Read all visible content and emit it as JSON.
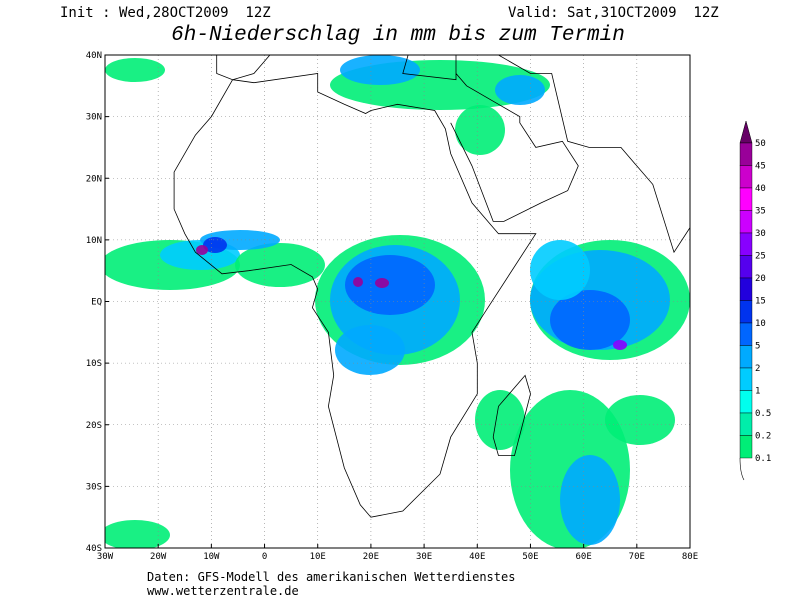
{
  "header": {
    "init": "Init : Wed,28OCT2009  12Z",
    "valid": "Valid: Sat,31OCT2009  12Z",
    "title": "6h-Niederschlag in mm bis zum Termin"
  },
  "map": {
    "lon_labels": [
      "30W",
      "20W",
      "10W",
      "0",
      "10E",
      "20E",
      "30E",
      "40E",
      "50E",
      "60E",
      "70E",
      "80E"
    ],
    "lat_labels": [
      "40N",
      "30N",
      "20N",
      "10N",
      "EQ",
      "10S",
      "20S",
      "30S",
      "40S"
    ]
  },
  "legend": {
    "levels": [
      50,
      45,
      40,
      35,
      30,
      25,
      20,
      15,
      10,
      5,
      2,
      1,
      0.5,
      0.2,
      0.1
    ]
  },
  "footer": {
    "source": "Daten: GFS-Modell des amerikanischen Wetterdienstes",
    "url": "www.wetterzentrale.de"
  }
}
